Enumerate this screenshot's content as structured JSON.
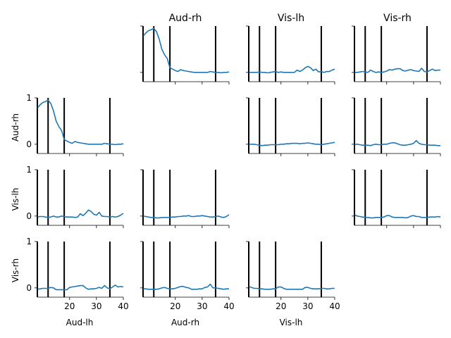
{
  "chart_data": {
    "type": "line",
    "layout": "4x4 pairwise grid, diagonal empty",
    "region_labels": [
      "Aud-lh",
      "Aud-rh",
      "Vis-lh",
      "Vis-rh"
    ],
    "column_titles": [
      "",
      "Aud-rh",
      "Vis-lh",
      "Vis-rh"
    ],
    "row_labels": [
      "",
      "Aud-rh",
      "Vis-lh",
      "Vis-rh"
    ],
    "bottom_labels": [
      "Aud-lh",
      "Aud-rh",
      "Vis-lh"
    ],
    "xlim": [
      8,
      40
    ],
    "ylim": [
      -0.2,
      1
    ],
    "x_ticks": [
      20,
      30,
      40
    ],
    "x_tick_labels": [
      "20",
      "30",
      "40"
    ],
    "y_ticks": [
      0,
      1
    ],
    "y_tick_labels": [
      "0",
      "1"
    ],
    "vertical_markers": [
      8,
      12,
      18,
      35
    ],
    "line_color": "#1f77b4",
    "marker_color": "#000000",
    "x": [
      8,
      9,
      10,
      11,
      12,
      13,
      14,
      15,
      16,
      17,
      18,
      19,
      20,
      21,
      22,
      23,
      24,
      25,
      26,
      27,
      28,
      29,
      30,
      31,
      32,
      33,
      34,
      35,
      36,
      37,
      38,
      39,
      40
    ],
    "panels": [
      {
        "row": 0,
        "col": 1,
        "values": [
          0.78,
          0.85,
          0.9,
          0.92,
          0.95,
          0.88,
          0.72,
          0.5,
          0.38,
          0.3,
          0.1,
          0.07,
          0.04,
          0.02,
          0.06,
          0.04,
          0.03,
          0.02,
          0.01,
          0,
          0,
          0,
          0,
          0,
          0,
          0.02,
          0.01,
          0,
          0,
          -0.01,
          0,
          0,
          0.01
        ]
      },
      {
        "row": 0,
        "col": 2,
        "values": [
          0,
          0,
          0,
          0,
          0.01,
          0,
          0,
          -0.01,
          0,
          0.01,
          0.02,
          0,
          0.01,
          0,
          0,
          0,
          0,
          0,
          0.05,
          0.02,
          0.05,
          0.1,
          0.13,
          0.1,
          0.04,
          0.07,
          0.01,
          0.02,
          0,
          0.02,
          0.02,
          0.05,
          0.07
        ]
      },
      {
        "row": 0,
        "col": 3,
        "values": [
          0,
          0,
          0.01,
          0.02,
          0.01,
          0,
          0.05,
          0.02,
          0,
          0.01,
          0,
          0.01,
          0.03,
          0.06,
          0.05,
          0.07,
          0.08,
          0.08,
          0.04,
          0.03,
          0.05,
          0.06,
          0.04,
          0.03,
          0.02,
          0.09,
          0.02,
          0.01,
          0.04,
          0.07,
          0.04,
          0.05,
          0.05
        ]
      },
      {
        "row": 1,
        "col": 0,
        "values": [
          0.78,
          0.85,
          0.9,
          0.92,
          0.95,
          0.88,
          0.72,
          0.5,
          0.38,
          0.3,
          0.1,
          0.07,
          0.04,
          0.02,
          0.06,
          0.04,
          0.03,
          0.02,
          0.01,
          0,
          0,
          0,
          0,
          0,
          0,
          0.02,
          0.01,
          0,
          0,
          -0.01,
          0,
          0,
          0.01
        ]
      },
      {
        "row": 1,
        "col": 2,
        "values": [
          0,
          0,
          0,
          -0.01,
          -0.02,
          -0.03,
          -0.02,
          -0.02,
          -0.01,
          -0.01,
          -0.01,
          -0.01,
          0,
          0,
          0.01,
          0.01,
          0.02,
          0.02,
          0.02,
          0.01,
          0.02,
          0.02,
          0.03,
          0.02,
          0.01,
          0,
          0,
          -0.01,
          0,
          0.01,
          0.02,
          0.03,
          0.04
        ]
      },
      {
        "row": 1,
        "col": 3,
        "values": [
          0,
          0,
          -0.01,
          -0.02,
          -0.02,
          -0.02,
          -0.03,
          -0.01,
          0,
          -0.01,
          -0.01,
          0,
          0,
          0.02,
          0.03,
          0.03,
          0.01,
          -0.01,
          -0.02,
          -0.02,
          -0.01,
          0,
          0.02,
          0.08,
          0.02,
          0,
          -0.01,
          -0.01,
          -0.02,
          -0.02,
          -0.02,
          -0.03,
          -0.03
        ]
      },
      {
        "row": 2,
        "col": 0,
        "values": [
          -0.02,
          -0.01,
          -0.01,
          -0.02,
          -0.03,
          -0.02,
          0,
          -0.02,
          -0.02,
          0,
          -0.01,
          -0.02,
          -0.02,
          -0.02,
          -0.03,
          -0.02,
          0.05,
          0.01,
          0.06,
          0.13,
          0.1,
          0.04,
          0.02,
          0.08,
          0,
          -0.01,
          -0.01,
          -0.02,
          -0.01,
          -0.02,
          -0.01,
          0.02,
          0.06
        ]
      },
      {
        "row": 2,
        "col": 1,
        "values": [
          0,
          -0.01,
          -0.02,
          -0.03,
          -0.03,
          -0.04,
          -0.04,
          -0.03,
          -0.03,
          -0.03,
          -0.03,
          -0.02,
          -0.02,
          -0.01,
          -0.01,
          0,
          0,
          0.01,
          -0.01,
          -0.01,
          0,
          0,
          0.01,
          0,
          -0.01,
          -0.02,
          -0.02,
          -0.01,
          0,
          -0.02,
          -0.03,
          -0.01,
          0.03
        ]
      },
      {
        "row": 2,
        "col": 3,
        "values": [
          0.03,
          0,
          -0.01,
          -0.02,
          -0.03,
          -0.03,
          -0.04,
          -0.04,
          -0.03,
          -0.03,
          -0.03,
          -0.02,
          0.01,
          0.01,
          -0.02,
          -0.03,
          -0.03,
          -0.03,
          -0.03,
          -0.04,
          -0.03,
          0,
          0.01,
          -0.01,
          -0.01,
          -0.03,
          -0.03,
          -0.03,
          -0.02,
          -0.02,
          -0.02,
          -0.01,
          -0.02
        ]
      },
      {
        "row": 3,
        "col": 0,
        "values": [
          -0.03,
          -0.02,
          -0.01,
          -0.01,
          -0.01,
          0.01,
          0,
          -0.04,
          -0.04,
          -0.04,
          -0.04,
          -0.04,
          0.01,
          0.02,
          0.03,
          0.04,
          0.05,
          0.05,
          0,
          -0.03,
          -0.02,
          -0.02,
          -0.01,
          0.01,
          -0.01,
          0.05,
          0,
          -0.02,
          0.02,
          0.06,
          0.02,
          0.03,
          0.02
        ]
      },
      {
        "row": 3,
        "col": 1,
        "values": [
          -0.02,
          -0.02,
          -0.03,
          -0.03,
          -0.03,
          -0.03,
          -0.02,
          0,
          0.01,
          -0.01,
          -0.02,
          -0.02,
          -0.01,
          0.01,
          0.03,
          0.03,
          0.01,
          0,
          -0.03,
          -0.03,
          -0.03,
          -0.02,
          -0.02,
          0.01,
          0.02,
          0.08,
          0,
          0,
          -0.01,
          -0.02,
          -0.03,
          -0.02,
          -0.02
        ]
      },
      {
        "row": 3,
        "col": 2,
        "values": [
          0.03,
          0.01,
          -0.01,
          -0.01,
          -0.02,
          -0.02,
          -0.03,
          -0.03,
          -0.03,
          -0.02,
          -0.02,
          0.02,
          0.02,
          -0.01,
          -0.03,
          -0.03,
          -0.03,
          -0.03,
          -0.03,
          -0.03,
          -0.03,
          0.01,
          0.01,
          -0.01,
          -0.02,
          -0.02,
          -0.02,
          -0.01,
          -0.01,
          -0.02,
          -0.02,
          -0.01,
          -0.01
        ]
      }
    ]
  }
}
